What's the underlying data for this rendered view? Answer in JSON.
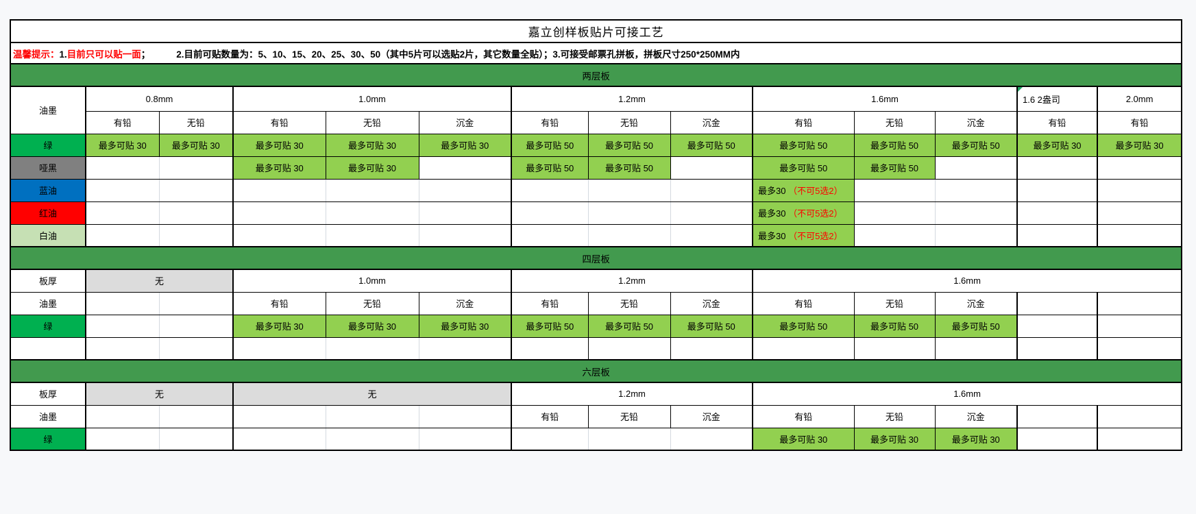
{
  "title": "嘉立创样板贴片可接工艺",
  "notice": {
    "prefix": "温馨提示：",
    "item1_num": "1.",
    "item1_highlight": "目前只可以贴一面",
    "item1_tail": "；",
    "item2": "2.目前可贴数量为：5、10、15、20、25、30、50（其中5片可以选贴2片，其它数量全贴）；",
    "item3": "3.可接受邮票孔拼板，拼板尺寸250*250MM内"
  },
  "colors": {
    "section_bar_green": "#429a4e",
    "value_cell_green": "#92d050",
    "green_ink_label": "#00b050",
    "matte_black_ink_label": "#808080",
    "blue_ink_label": "#0070c0",
    "red_ink_label": "#ff0000",
    "white_ink_label": "#c6e0b4",
    "not_available_gray": "#dcdcdc",
    "warning_text_red": "#ff0000"
  },
  "table": {
    "sections": [
      {
        "bar": "两层板",
        "rows": [
          {
            "n": "thickness-header-row",
            "cells": [
              {
                "n": "corner-label",
                "t": "油墨",
                "rowspan": 2
              },
              {
                "n": "group-header",
                "t": "0.8mm",
                "span": 2
              },
              {
                "n": "group-header",
                "t": "1.0mm",
                "span": 3
              },
              {
                "n": "group-header",
                "t": "1.2mm",
                "span": 3
              },
              {
                "n": "group-header",
                "t": "1.6mm",
                "span": 3
              },
              {
                "n": "group-header",
                "t": "1.6  2盎司",
                "cls": "left",
                "note": true
              },
              {
                "n": "group-header",
                "t": "2.0mm"
              }
            ]
          },
          {
            "n": "finish-header-row",
            "startCol": 1,
            "cells": [
              {
                "n": "sub-header",
                "t": "有铅"
              },
              {
                "n": "sub-header",
                "t": "无铅"
              },
              {
                "n": "sub-header",
                "t": "有铅"
              },
              {
                "n": "sub-header",
                "t": "无铅"
              },
              {
                "n": "sub-header",
                "t": "沉金"
              },
              {
                "n": "sub-header",
                "t": "有铅"
              },
              {
                "n": "sub-header",
                "t": "无铅"
              },
              {
                "n": "sub-header",
                "t": "沉金"
              },
              {
                "n": "sub-header",
                "t": "有铅"
              },
              {
                "n": "sub-header",
                "t": "无铅"
              },
              {
                "n": "sub-header",
                "t": "沉金"
              },
              {
                "n": "sub-header",
                "t": "有铅"
              },
              {
                "n": "sub-header",
                "t": "有铅"
              }
            ]
          },
          {
            "n": "ink-row-green",
            "cells": [
              {
                "n": "row-label",
                "t": "绿",
                "cls": "lbl-green"
              },
              {
                "n": "value-cell",
                "t": "最多可贴 30",
                "cls": "val"
              },
              {
                "n": "value-cell",
                "t": "最多可贴 30",
                "cls": "val"
              },
              {
                "n": "value-cell",
                "t": "最多可贴 30",
                "cls": "val"
              },
              {
                "n": "value-cell",
                "t": "最多可贴 30",
                "cls": "val"
              },
              {
                "n": "value-cell",
                "t": "最多可贴 30",
                "cls": "val"
              },
              {
                "n": "value-cell",
                "t": "最多可贴 50",
                "cls": "val"
              },
              {
                "n": "value-cell",
                "t": "最多可贴 50",
                "cls": "val"
              },
              {
                "n": "value-cell",
                "t": "最多可贴 50",
                "cls": "val"
              },
              {
                "n": "value-cell",
                "t": "最多可贴 50",
                "cls": "val"
              },
              {
                "n": "value-cell",
                "t": "最多可贴 50",
                "cls": "val"
              },
              {
                "n": "value-cell",
                "t": "最多可贴 50",
                "cls": "val"
              },
              {
                "n": "value-cell",
                "t": "最多可贴 30",
                "cls": "val"
              },
              {
                "n": "value-cell",
                "t": "最多可贴 30",
                "cls": "val"
              }
            ]
          },
          {
            "n": "ink-row-matte-black",
            "cells": [
              {
                "n": "row-label",
                "t": "哑黑",
                "cls": "lbl-dark"
              },
              {
                "lg": 1
              },
              {},
              {
                "n": "value-cell",
                "t": "最多可贴 30",
                "cls": "val"
              },
              {
                "n": "value-cell",
                "t": "最多可贴 30",
                "cls": "val"
              },
              {},
              {
                "n": "value-cell",
                "t": "最多可贴 50",
                "cls": "val"
              },
              {
                "n": "value-cell",
                "t": "最多可贴 50",
                "cls": "val"
              },
              {},
              {
                "n": "value-cell",
                "t": "最多可贴 50",
                "cls": "val"
              },
              {
                "n": "value-cell",
                "t": "最多可贴 50",
                "cls": "val"
              },
              {},
              {
                "lg": 1
              },
              {}
            ]
          },
          {
            "n": "ink-row-blue",
            "cells": [
              {
                "n": "row-label",
                "t": "蓝油",
                "cls": "lbl-blue"
              },
              {
                "lg": 1
              },
              {},
              {
                "lg": 1
              },
              {
                "lg": 1
              },
              {},
              {
                "lg": 1
              },
              {
                "lg": 1
              },
              {},
              {
                "n": "value-cell",
                "cls": "val left",
                "parts": [
                  {
                    "t": "最多30 "
                  },
                  {
                    "t": "（不可5选2）",
                    "cls": "red"
                  }
                ]
              },
              {
                "lg": 1
              },
              {},
              {
                "lg": 1
              },
              {}
            ]
          },
          {
            "n": "ink-row-red",
            "cells": [
              {
                "n": "row-label",
                "t": "红油",
                "cls": "lbl-red"
              },
              {
                "lg": 1
              },
              {},
              {
                "lg": 1
              },
              {
                "lg": 1
              },
              {},
              {
                "lg": 1
              },
              {
                "lg": 1
              },
              {},
              {
                "n": "value-cell",
                "cls": "val left",
                "parts": [
                  {
                    "t": "最多30 "
                  },
                  {
                    "t": "（不可5选2）",
                    "cls": "red"
                  }
                ]
              },
              {
                "lg": 1
              },
              {},
              {
                "lg": 1
              },
              {}
            ]
          },
          {
            "n": "ink-row-white",
            "cells": [
              {
                "n": "row-label",
                "t": "白油",
                "cls": "lbl-pale"
              },
              {
                "lg": 1
              },
              {},
              {
                "lg": 1
              },
              {
                "lg": 1
              },
              {},
              {
                "lg": 1
              },
              {
                "lg": 1
              },
              {},
              {
                "n": "value-cell",
                "cls": "val left",
                "parts": [
                  {
                    "t": "最多30 "
                  },
                  {
                    "t": "（不可5选2）",
                    "cls": "red"
                  }
                ]
              },
              {
                "lg": 1
              },
              {},
              {
                "lg": 1
              },
              {}
            ]
          }
        ]
      },
      {
        "bar": "四层板",
        "rows": [
          {
            "n": "thickness-row",
            "cells": [
              {
                "n": "row-label",
                "t": "板厚"
              },
              {
                "n": "group-header",
                "t": "无",
                "span": 2,
                "cls": "gray"
              },
              {
                "n": "group-header",
                "t": "1.0mm",
                "span": 3
              },
              {
                "n": "group-header",
                "t": "1.2mm",
                "span": 3
              },
              {
                "n": "group-header",
                "t": "1.6mm",
                "span": 5
              }
            ]
          },
          {
            "n": "finish-header-row",
            "cells": [
              {
                "n": "row-label",
                "t": "油墨"
              },
              {
                "lg": 1
              },
              {},
              {
                "n": "sub-header",
                "t": "有铅"
              },
              {
                "n": "sub-header",
                "t": "无铅"
              },
              {
                "n": "sub-header",
                "t": "沉金"
              },
              {
                "n": "sub-header",
                "t": "有铅"
              },
              {
                "n": "sub-header",
                "t": "无铅"
              },
              {
                "n": "sub-header",
                "t": "沉金"
              },
              {
                "n": "sub-header",
                "t": "有铅"
              },
              {
                "n": "sub-header",
                "t": "无铅"
              },
              {
                "n": "sub-header",
                "t": "沉金"
              },
              {},
              {}
            ]
          },
          {
            "n": "ink-row-green",
            "cells": [
              {
                "n": "row-label",
                "t": "绿",
                "cls": "lbl-green"
              },
              {
                "lg": 1
              },
              {},
              {
                "n": "value-cell",
                "t": "最多可贴 30",
                "cls": "val"
              },
              {
                "n": "value-cell",
                "t": "最多可贴 30",
                "cls": "val"
              },
              {
                "n": "value-cell",
                "t": "最多可贴 30",
                "cls": "val"
              },
              {
                "n": "value-cell",
                "t": "最多可贴 50",
                "cls": "val"
              },
              {
                "n": "value-cell",
                "t": "最多可贴 50",
                "cls": "val"
              },
              {
                "n": "value-cell",
                "t": "最多可贴 50",
                "cls": "val"
              },
              {
                "n": "value-cell",
                "t": "最多可贴 50",
                "cls": "val"
              },
              {
                "n": "value-cell",
                "t": "最多可贴 50",
                "cls": "val"
              },
              {
                "n": "value-cell",
                "t": "最多可贴 50",
                "cls": "val"
              },
              {},
              {}
            ]
          },
          {
            "n": "empty-row",
            "cells": [
              {
                "n": "row-label"
              },
              {
                "lg": 1
              },
              {},
              {
                "lg": 1
              },
              {
                "lg": 1
              },
              {},
              {},
              {},
              {},
              {},
              {},
              {},
              {},
              {}
            ]
          }
        ]
      },
      {
        "bar": "六层板",
        "rows": [
          {
            "n": "thickness-row",
            "cells": [
              {
                "n": "row-label",
                "t": "板厚"
              },
              {
                "n": "group-header",
                "t": "无",
                "span": 2,
                "cls": "gray"
              },
              {
                "n": "group-header",
                "t": "无",
                "span": 3,
                "cls": "gray"
              },
              {
                "n": "group-header",
                "t": "1.2mm",
                "span": 3
              },
              {
                "n": "group-header",
                "t": "1.6mm",
                "span": 5
              }
            ]
          },
          {
            "n": "finish-header-row",
            "cells": [
              {
                "n": "row-label",
                "t": "油墨"
              },
              {
                "lg": 1
              },
              {},
              {
                "lg": 1
              },
              {
                "lg": 1
              },
              {},
              {
                "n": "sub-header",
                "t": "有铅"
              },
              {
                "n": "sub-header",
                "t": "无铅"
              },
              {
                "n": "sub-header",
                "t": "沉金"
              },
              {
                "n": "sub-header",
                "t": "有铅"
              },
              {
                "n": "sub-header",
                "t": "无铅"
              },
              {
                "n": "sub-header",
                "t": "沉金"
              },
              {},
              {}
            ]
          },
          {
            "n": "ink-row-green",
            "cells": [
              {
                "n": "row-label",
                "t": "绿",
                "cls": "lbl-green"
              },
              {
                "lg": 1
              },
              {},
              {
                "lg": 1
              },
              {
                "lg": 1
              },
              {},
              {
                "lg": 1
              },
              {
                "lg": 1
              },
              {},
              {
                "n": "value-cell",
                "t": "最多可贴 30",
                "cls": "val"
              },
              {
                "n": "value-cell",
                "t": "最多可贴 30",
                "cls": "val"
              },
              {
                "n": "value-cell",
                "t": "最多可贴 30",
                "cls": "val"
              },
              {},
              {}
            ]
          }
        ]
      }
    ]
  }
}
